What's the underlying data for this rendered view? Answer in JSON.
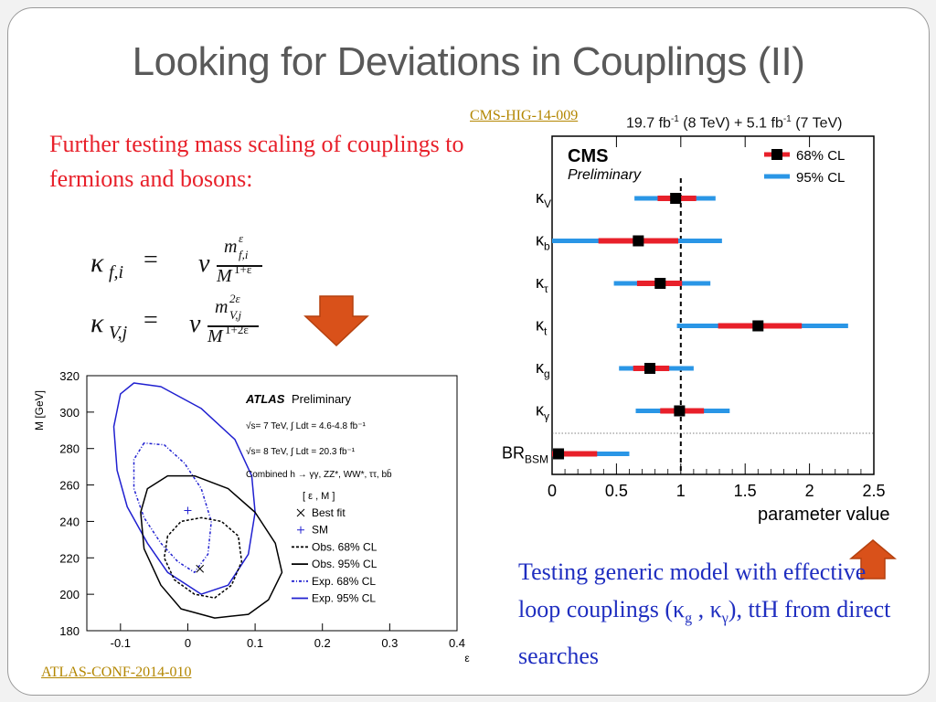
{
  "slide": {
    "title": "Looking for Deviations in Couplings (II)",
    "left_text": "Further testing mass scaling of couplings to fermions and bosons:",
    "right_text_1": "Testing generic model with effective loop couplings (",
    "right_text_kg": "κ",
    "right_text_kg_sub": "g",
    "right_text_sep": " , ",
    "right_text_ky": "κ",
    "right_text_ky_sub": "γ",
    "right_text_2": "), ttH from direct searches",
    "cms_link": "CMS-HIG-14-009",
    "atlas_link": "ATLAS-CONF-2014-010",
    "cms_lumi_a": "19.7 fb",
    "cms_lumi_exp": "-1",
    "cms_lumi_b": " (8 TeV) +  5.1 fb",
    "cms_lumi_c": " (7 TeV)",
    "arrow_color": "#d9511a"
  },
  "equations": {
    "kf_lhs": "κ",
    "kf_sub": "f,i",
    "kf_eq": "=",
    "kf_v": "v",
    "kf_num": "m",
    "kf_num_sup": "ε",
    "kf_num_sub": "f,i",
    "kf_den": "M",
    "kf_den_sup": "1+ε",
    "kv_lhs": "κ",
    "kv_sub": "V,j",
    "kv_eq": "=",
    "kv_v": "v",
    "kv_num": "m",
    "kv_num_sup": "2ε",
    "kv_num_sub": "V,j",
    "kv_den": "M",
    "kv_den_sup": "1+2ε"
  },
  "chart_data": [
    {
      "type": "scatter",
      "label": "CMS",
      "sublabel": "Preliminary",
      "xlabel": "parameter value",
      "xlim": [
        0,
        2.5
      ],
      "x_ticks": [
        "0",
        "0.5",
        "1",
        "1.5",
        "2",
        "2.5"
      ],
      "reference_line": 1,
      "legend": [
        "68% CL",
        "95% CL"
      ],
      "legend_position": "top-right",
      "colors": {
        "cl68": "#e8202a",
        "cl95": "#2a96e6",
        "marker": "#000000"
      },
      "series": [
        {
          "param": "κ",
          "sub": "V",
          "value": 0.96,
          "cl68": [
            0.82,
            1.12
          ],
          "cl95": [
            0.64,
            1.27
          ]
        },
        {
          "param": "κ",
          "sub": "b",
          "value": 0.67,
          "cl68": [
            0.36,
            0.98
          ],
          "cl95": [
            0.0,
            1.32
          ]
        },
        {
          "param": "κ",
          "sub": "τ",
          "value": 0.84,
          "cl68": [
            0.66,
            1.01
          ],
          "cl95": [
            0.48,
            1.23
          ]
        },
        {
          "param": "κ",
          "sub": "t",
          "value": 1.6,
          "cl68": [
            1.29,
            1.94
          ],
          "cl95": [
            0.97,
            2.3
          ]
        },
        {
          "param": "κ",
          "sub": "g",
          "value": 0.76,
          "cl68": [
            0.63,
            0.91
          ],
          "cl95": [
            0.52,
            1.1
          ]
        },
        {
          "param": "κ",
          "sub": "γ",
          "value": 0.99,
          "cl68": [
            0.84,
            1.18
          ],
          "cl95": [
            0.65,
            1.38
          ]
        },
        {
          "param": "BR",
          "sub": "BSM",
          "value": 0.05,
          "cl68": [
            0.0,
            0.35
          ],
          "cl95": [
            0.0,
            0.6
          ]
        }
      ]
    },
    {
      "type": "scatter",
      "label": "ATLAS",
      "sublabel": "Preliminary",
      "lumi_1": "√s= 7 TeV, ∫ Ldt = 4.6-4.8 fb⁻¹",
      "lumi_2": "√s= 8 TeV, ∫ Ldt = 20.3 fb⁻¹",
      "combined": "Combined h → γγ, ZZ*, WW*, ττ, bb̄",
      "legend_title": "[ ε , M ]",
      "legend": [
        "Best fit",
        "SM",
        "Obs. 68% CL",
        "Obs. 95% CL",
        "Exp. 68% CL",
        "Exp. 95% CL"
      ],
      "xlabel": "ε",
      "ylabel": "M [GeV]",
      "xlim": [
        -0.15,
        0.4
      ],
      "ylim": [
        180,
        320
      ],
      "x_ticks": [
        "-0.1",
        "0",
        "0.1",
        "0.2",
        "0.3",
        "0.4"
      ],
      "y_ticks": [
        "180",
        "200",
        "220",
        "240",
        "260",
        "280",
        "300",
        "320"
      ],
      "best_fit": [
        0.018,
        214
      ],
      "sm": [
        0.0,
        246
      ],
      "colors": {
        "obs": "#000000",
        "exp": "#2020d0"
      }
    }
  ]
}
